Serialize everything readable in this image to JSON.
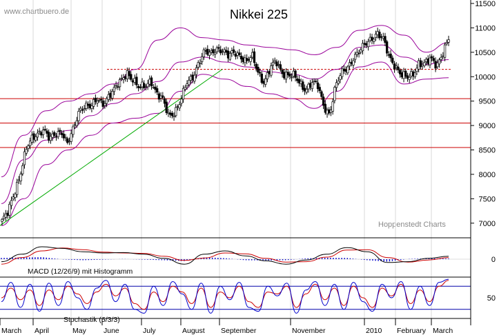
{
  "header": {
    "source": "www.chartbuero.de",
    "title": "Nikkei 225",
    "credit": "Hoppenstedt Charts"
  },
  "colors": {
    "bollinger": "#990099",
    "support": "#cc0000",
    "trend": "#00aa00",
    "macd": "#000000",
    "signal": "#cc0000",
    "histogram": "#0000cc",
    "stoch_k": "#0000cc",
    "stoch_d": "#cc0000",
    "stoch_bands": "#0000aa",
    "candle_up": "#ffffff",
    "candle_down": "#000000"
  },
  "chart_data": [
    {
      "type": "candlestick",
      "title": "Nikkei 225",
      "panel": "price",
      "ylim": [
        6700,
        11500
      ],
      "y_ticks": [
        7000,
        7500,
        8000,
        8500,
        9000,
        9500,
        10000,
        10500,
        11000,
        11500
      ],
      "x_labels": [
        "March",
        "April",
        "May",
        "June",
        "July",
        "August",
        "September",
        "November",
        "2010",
        "February",
        "March"
      ],
      "close_path": [
        [
          "March",
          7050
        ],
        [
          "",
          7200
        ],
        [
          "",
          7600
        ],
        [
          "",
          8000
        ],
        [
          "",
          8500
        ],
        [
          "",
          8700
        ],
        [
          "April",
          8850
        ],
        [
          "",
          8950
        ],
        [
          "",
          8700
        ],
        [
          "",
          8800
        ],
        [
          "",
          8900
        ],
        [
          "",
          8650
        ],
        [
          "May",
          8900
        ],
        [
          "",
          9300
        ],
        [
          "",
          9450
        ],
        [
          "",
          9400
        ],
        [
          "",
          9500
        ],
        [
          "",
          9450
        ],
        [
          "",
          9650
        ],
        [
          "June",
          9750
        ],
        [
          "",
          9900
        ],
        [
          "",
          10100
        ],
        [
          "",
          9950
        ],
        [
          "",
          9750
        ],
        [
          "",
          9800
        ],
        [
          "",
          9950
        ],
        [
          "",
          9650
        ],
        [
          "July",
          9500
        ],
        [
          "",
          9200
        ],
        [
          "",
          9300
        ],
        [
          "",
          9500
        ],
        [
          "",
          9850
        ],
        [
          "",
          10000
        ],
        [
          "",
          10300
        ],
        [
          "August",
          10500
        ],
        [
          "",
          10450
        ],
        [
          "",
          10600
        ],
        [
          "",
          10550
        ],
        [
          "",
          10400
        ],
        [
          "",
          10500
        ],
        [
          "",
          10450
        ],
        [
          "September",
          10300
        ],
        [
          "",
          10400
        ],
        [
          "",
          10100
        ],
        [
          "",
          9900
        ],
        [
          "",
          10150
        ],
        [
          "",
          10300
        ],
        [
          "",
          10100
        ],
        [
          "",
          10050
        ],
        [
          "",
          10000
        ],
        [
          "",
          9850
        ],
        [
          "",
          9750
        ],
        [
          "",
          9900
        ],
        [
          "",
          9800
        ],
        [
          "November",
          9400
        ],
        [
          "",
          9250
        ],
        [
          "",
          9800
        ],
        [
          "",
          10050
        ],
        [
          "",
          10200
        ],
        [
          "",
          10400
        ],
        [
          "",
          10500
        ],
        [
          "",
          10650
        ],
        [
          "",
          10800
        ],
        [
          "2010",
          10900
        ],
        [
          "",
          10750
        ],
        [
          "",
          10400
        ],
        [
          "",
          10250
        ],
        [
          "",
          10050
        ],
        [
          "February",
          9950
        ],
        [
          "",
          10050
        ],
        [
          "",
          10300
        ],
        [
          "",
          10250
        ],
        [
          "",
          10350
        ],
        [
          "",
          10250
        ],
        [
          "March",
          10500
        ],
        [
          "",
          10750
        ]
      ],
      "bollinger": {
        "upper": [
          7950,
          8800,
          9300,
          9500,
          9650,
          9850,
          10150,
          10750,
          11000,
          10800,
          10750,
          10650,
          10600,
          10550,
          10450,
          10600,
          10950,
          11050,
          10850,
          10500,
          10700
        ],
        "middle": [
          7400,
          8300,
          8700,
          8900,
          9200,
          9450,
          9650,
          9900,
          10300,
          10400,
          10300,
          10200,
          10100,
          10050,
          9950,
          10150,
          10600,
          10650,
          10400,
          10250,
          10350
        ],
        "lower": [
          6950,
          7500,
          8200,
          8500,
          8800,
          9050,
          9150,
          9250,
          9700,
          10050,
          9950,
          9800,
          9650,
          9550,
          9350,
          9700,
          10200,
          10300,
          9850,
          9950,
          9980
        ]
      },
      "horizontal_lines": [
        {
          "value": 9550,
          "style": "solid"
        },
        {
          "value": 9050,
          "style": "solid"
        },
        {
          "value": 8550,
          "style": "solid"
        },
        {
          "value": 10150,
          "style": "dashed"
        }
      ],
      "trendline": [
        {
          "x": "March",
          "y": 6950
        },
        {
          "x": "September",
          "y": 10150
        }
      ]
    },
    {
      "type": "line",
      "panel": "macd",
      "label": "MACD (12/26/9) mit Histogramm",
      "y_ticks": [
        0
      ],
      "series": [
        {
          "role": "macd",
          "values": [
            -60,
            120,
            300,
            260,
            180,
            150,
            160,
            120,
            20,
            -120,
            120,
            200,
            80,
            -40,
            -120,
            -20,
            120,
            280,
            180,
            -80,
            -60,
            20,
            70
          ]
        },
        {
          "role": "signal",
          "values": [
            -120,
            40,
            200,
            270,
            230,
            170,
            150,
            140,
            70,
            -30,
            30,
            150,
            130,
            20,
            -70,
            -60,
            50,
            220,
            230,
            40,
            -70,
            -20,
            40
          ]
        }
      ]
    },
    {
      "type": "line",
      "panel": "stochastic",
      "label": "Stochastik (5/3/3)",
      "y_ticks": [
        50
      ],
      "ylim": [
        0,
        100
      ],
      "bands": [
        80,
        20
      ],
      "series": [
        {
          "role": "%K",
          "values": [
            40,
            90,
            25,
            85,
            15,
            88,
            30,
            92,
            50,
            20,
            75,
            95,
            40,
            85,
            20,
            10,
            80,
            30,
            92,
            60,
            20,
            88,
            10,
            80,
            45,
            90,
            25,
            15,
            80,
            55,
            88,
            10,
            70,
            92,
            30,
            85,
            20,
            90,
            40,
            15,
            85,
            50,
            92,
            20,
            80,
            30,
            90,
            98
          ]
        },
        {
          "role": "%D",
          "values": [
            50,
            75,
            45,
            70,
            30,
            70,
            45,
            80,
            60,
            35,
            65,
            85,
            55,
            75,
            35,
            20,
            65,
            40,
            80,
            65,
            35,
            75,
            25,
            65,
            50,
            80,
            40,
            25,
            65,
            60,
            80,
            25,
            60,
            85,
            45,
            75,
            30,
            80,
            50,
            25,
            75,
            55,
            85,
            35,
            70,
            40,
            80,
            95
          ]
        }
      ]
    }
  ]
}
